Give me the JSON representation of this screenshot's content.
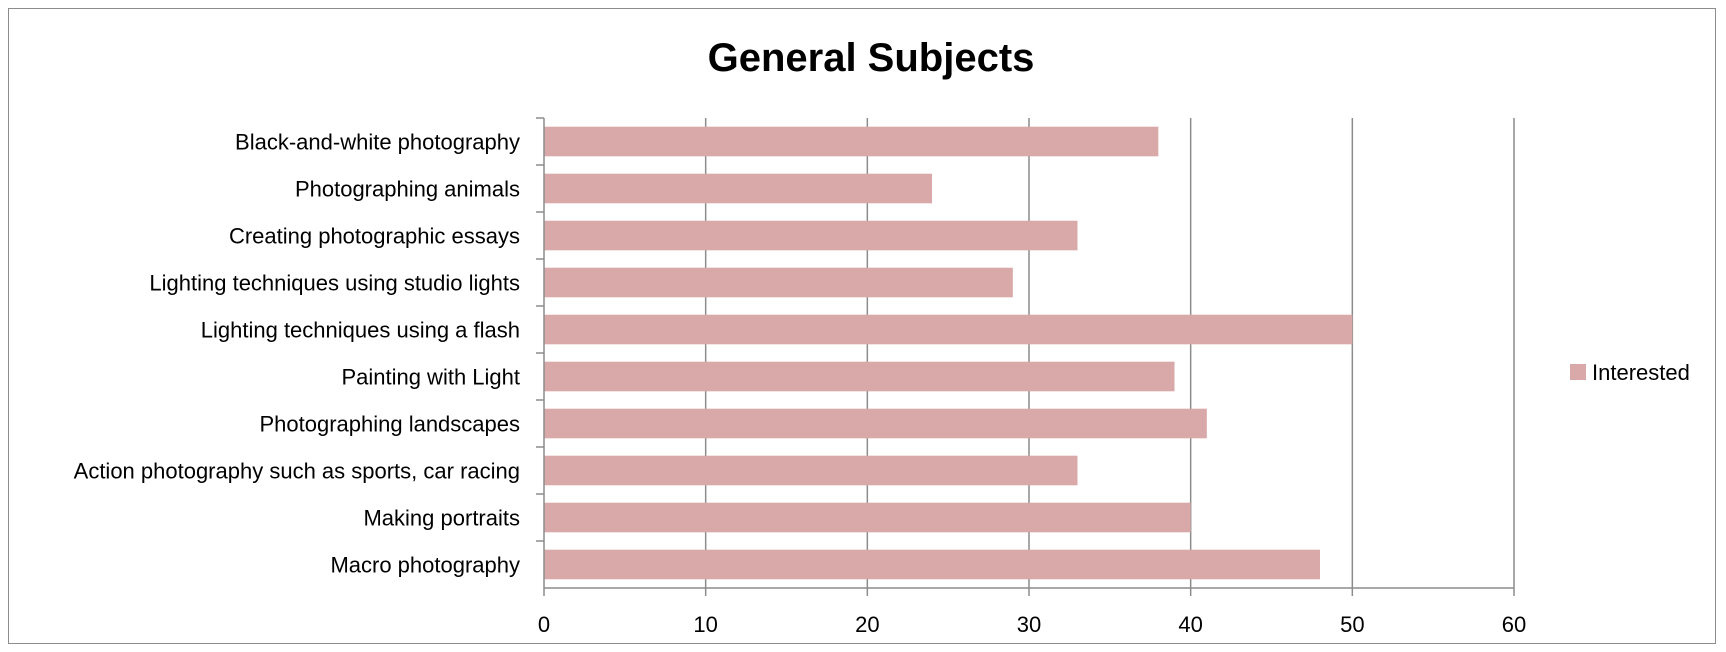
{
  "chart_data": {
    "type": "bar",
    "orientation": "horizontal",
    "title": "General Subjects",
    "xlabel": "",
    "ylabel": "",
    "categories": [
      "Black-and-white photography",
      "Photographing animals",
      "Creating photographic essays",
      "Lighting techniques using studio lights",
      "Lighting techniques using a flash",
      "Painting with Light",
      "Photographing landscapes",
      "Action photography such as sports, car racing",
      "Making portraits",
      "Macro photography"
    ],
    "series": [
      {
        "name": "Interested",
        "color": "#d9a9a9",
        "values": [
          38,
          24,
          33,
          29,
          50,
          39,
          41,
          33,
          40,
          48
        ]
      }
    ],
    "xlim": [
      0,
      60
    ],
    "xticks": [
      0,
      10,
      20,
      30,
      40,
      50,
      60
    ],
    "grid": "vertical",
    "legend": "right"
  }
}
